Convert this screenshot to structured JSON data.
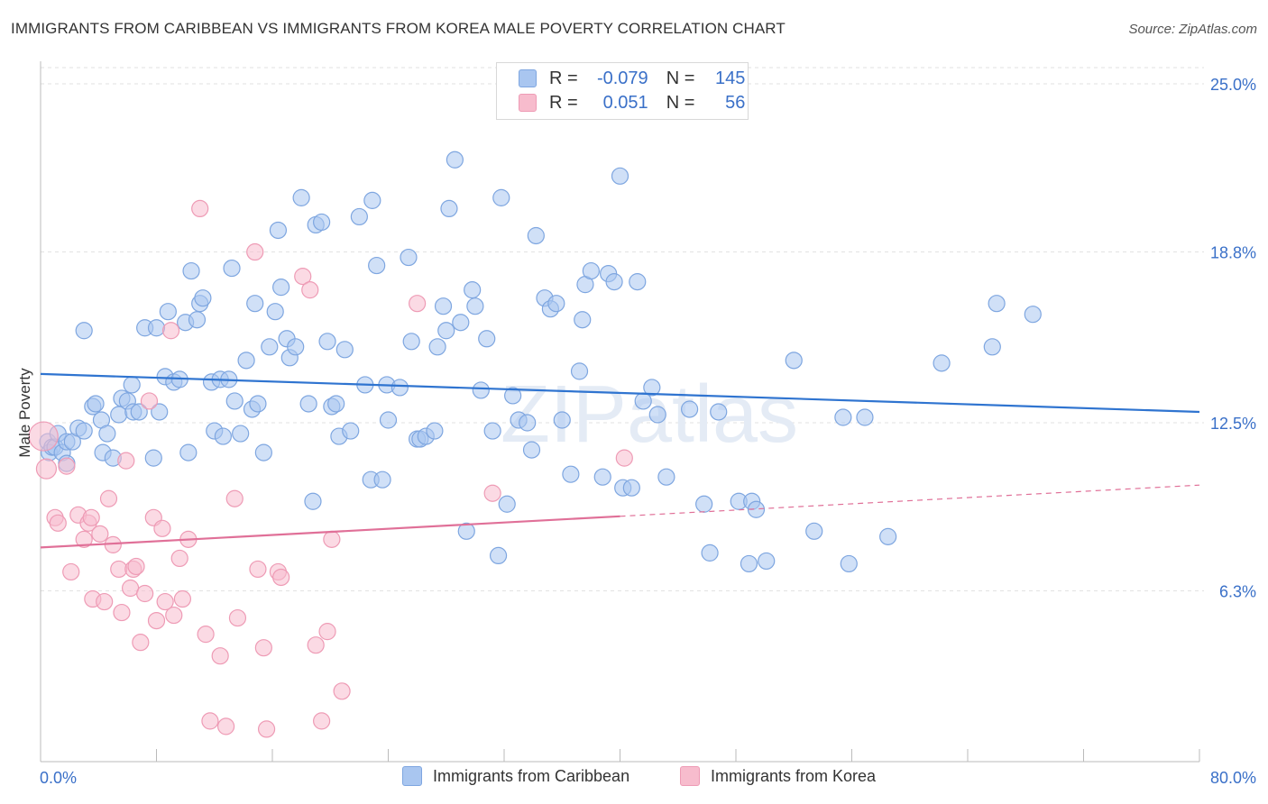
{
  "title": "IMMIGRANTS FROM CARIBBEAN VS IMMIGRANTS FROM KOREA MALE POVERTY CORRELATION CHART",
  "source": "Source: ZipAtlas.com",
  "watermark": "ZIPatlas",
  "legend_top": {
    "rows": [
      {
        "r_label": "R =",
        "r_value": "-0.079",
        "n_label": "N =",
        "n_value": "145"
      },
      {
        "r_label": "R =",
        "r_value": "0.051",
        "n_label": "N =",
        "n_value": "56"
      }
    ]
  },
  "legend_bottom": {
    "items": [
      {
        "label": "Immigrants from Caribbean"
      },
      {
        "label": "Immigrants from Korea"
      }
    ]
  },
  "colors": {
    "caribbean_fill": "#a9c6f0",
    "caribbean_stroke": "#7ea6e0",
    "caribbean_line": "#2f74d0",
    "korea_fill": "#f7bccd",
    "korea_stroke": "#ee9bb5",
    "korea_line": "#e07098",
    "tick_label": "#3a70c8",
    "grid": "#e2e2e2"
  },
  "chart_data": {
    "type": "scatter",
    "title": "IMMIGRANTS FROM CARIBBEAN VS IMMIGRANTS FROM KOREA MALE POVERTY CORRELATION CHART",
    "xlabel": "",
    "ylabel": "Male Poverty",
    "xlim": [
      0,
      80
    ],
    "ylim": [
      0,
      25.6
    ],
    "x_tick_labels": [
      "0.0%",
      "80.0%"
    ],
    "y_ticks": [
      6.3,
      12.5,
      18.8,
      25.0
    ],
    "y_tick_labels": [
      "6.3%",
      "12.5%",
      "18.8%",
      "25.0%"
    ],
    "grid": true,
    "legend_position": "top-center",
    "series": [
      {
        "name": "Immigrants from Caribbean",
        "R": -0.079,
        "N": 145,
        "trend": {
          "x": [
            0,
            80
          ],
          "y": [
            14.3,
            12.9
          ],
          "dashed_from": null
        },
        "points": [
          [
            0.5,
            11.8
          ],
          [
            0.6,
            11.4
          ],
          [
            0.8,
            11.6
          ],
          [
            1.0,
            11.6
          ],
          [
            1.2,
            12.1
          ],
          [
            1.5,
            11.4
          ],
          [
            1.8,
            11.0
          ],
          [
            1.8,
            11.8
          ],
          [
            2.2,
            11.8
          ],
          [
            2.6,
            12.3
          ],
          [
            3.0,
            15.9
          ],
          [
            3.0,
            12.2
          ],
          [
            3.6,
            13.1
          ],
          [
            3.8,
            13.2
          ],
          [
            4.2,
            12.6
          ],
          [
            4.3,
            11.4
          ],
          [
            4.6,
            12.1
          ],
          [
            5.0,
            11.2
          ],
          [
            5.4,
            12.8
          ],
          [
            5.6,
            13.4
          ],
          [
            6.0,
            13.3
          ],
          [
            6.3,
            13.9
          ],
          [
            6.4,
            12.9
          ],
          [
            6.8,
            12.9
          ],
          [
            7.2,
            16.0
          ],
          [
            7.8,
            11.2
          ],
          [
            8.0,
            16.0
          ],
          [
            8.2,
            12.9
          ],
          [
            8.6,
            14.2
          ],
          [
            8.8,
            16.6
          ],
          [
            9.2,
            14.0
          ],
          [
            9.6,
            14.1
          ],
          [
            10.0,
            16.2
          ],
          [
            10.2,
            11.4
          ],
          [
            10.4,
            18.1
          ],
          [
            10.8,
            16.3
          ],
          [
            11.0,
            16.9
          ],
          [
            11.2,
            17.1
          ],
          [
            11.8,
            14.0
          ],
          [
            12.0,
            12.2
          ],
          [
            12.4,
            14.1
          ],
          [
            12.6,
            12.0
          ],
          [
            13.0,
            14.1
          ],
          [
            13.2,
            18.2
          ],
          [
            13.4,
            13.3
          ],
          [
            13.8,
            12.1
          ],
          [
            14.2,
            14.8
          ],
          [
            14.6,
            13.0
          ],
          [
            14.8,
            16.9
          ],
          [
            15.0,
            13.2
          ],
          [
            15.4,
            11.4
          ],
          [
            15.8,
            15.3
          ],
          [
            16.2,
            16.6
          ],
          [
            16.4,
            19.6
          ],
          [
            16.6,
            17.5
          ],
          [
            17.0,
            15.6
          ],
          [
            17.2,
            14.9
          ],
          [
            17.6,
            15.3
          ],
          [
            18.0,
            20.8
          ],
          [
            18.5,
            13.2
          ],
          [
            18.8,
            9.6
          ],
          [
            19.0,
            19.8
          ],
          [
            19.4,
            19.9
          ],
          [
            19.8,
            15.5
          ],
          [
            20.1,
            13.1
          ],
          [
            20.4,
            13.2
          ],
          [
            20.6,
            12.0
          ],
          [
            21.0,
            15.2
          ],
          [
            21.4,
            12.2
          ],
          [
            22.0,
            20.1
          ],
          [
            22.4,
            13.9
          ],
          [
            22.8,
            10.4
          ],
          [
            22.9,
            20.7
          ],
          [
            23.2,
            18.3
          ],
          [
            23.6,
            10.4
          ],
          [
            23.9,
            13.9
          ],
          [
            24.0,
            12.6
          ],
          [
            24.8,
            13.8
          ],
          [
            25.4,
            18.6
          ],
          [
            25.6,
            15.5
          ],
          [
            26.0,
            11.9
          ],
          [
            26.2,
            11.9
          ],
          [
            26.6,
            12.0
          ],
          [
            27.2,
            12.2
          ],
          [
            27.4,
            15.3
          ],
          [
            27.8,
            16.8
          ],
          [
            28.0,
            15.9
          ],
          [
            28.2,
            20.4
          ],
          [
            28.6,
            22.2
          ],
          [
            29.0,
            16.2
          ],
          [
            29.4,
            8.5
          ],
          [
            29.8,
            17.4
          ],
          [
            30.0,
            16.8
          ],
          [
            30.4,
            13.7
          ],
          [
            30.8,
            15.6
          ],
          [
            31.2,
            12.2
          ],
          [
            31.6,
            7.6
          ],
          [
            31.8,
            20.8
          ],
          [
            32.2,
            9.5
          ],
          [
            32.6,
            13.5
          ],
          [
            33.0,
            12.6
          ],
          [
            33.6,
            12.5
          ],
          [
            33.9,
            11.5
          ],
          [
            34.2,
            19.4
          ],
          [
            34.8,
            17.1
          ],
          [
            35.2,
            16.7
          ],
          [
            35.6,
            16.9
          ],
          [
            36.0,
            12.6
          ],
          [
            36.6,
            10.6
          ],
          [
            37.2,
            14.4
          ],
          [
            37.4,
            16.3
          ],
          [
            37.6,
            17.6
          ],
          [
            38.0,
            18.1
          ],
          [
            38.8,
            10.5
          ],
          [
            39.2,
            18.0
          ],
          [
            39.6,
            17.7
          ],
          [
            40.0,
            21.6
          ],
          [
            40.2,
            10.1
          ],
          [
            40.8,
            10.1
          ],
          [
            41.2,
            17.7
          ],
          [
            41.6,
            13.3
          ],
          [
            42.2,
            13.8
          ],
          [
            42.6,
            12.8
          ],
          [
            43.2,
            10.5
          ],
          [
            44.8,
            13.0
          ],
          [
            45.8,
            9.5
          ],
          [
            46.2,
            7.7
          ],
          [
            46.8,
            12.9
          ],
          [
            48.2,
            9.6
          ],
          [
            48.9,
            7.3
          ],
          [
            49.1,
            9.6
          ],
          [
            49.4,
            9.3
          ],
          [
            50.1,
            7.4
          ],
          [
            52.0,
            14.8
          ],
          [
            53.4,
            8.5
          ],
          [
            55.4,
            12.7
          ],
          [
            55.8,
            7.3
          ],
          [
            56.9,
            12.7
          ],
          [
            58.5,
            8.3
          ],
          [
            62.2,
            14.7
          ],
          [
            65.7,
            15.3
          ],
          [
            66.0,
            16.9
          ],
          [
            68.5,
            16.5
          ]
        ]
      },
      {
        "name": "Immigrants from Korea",
        "R": 0.051,
        "N": 56,
        "trend": {
          "x": [
            0,
            80
          ],
          "y": [
            7.9,
            10.2
          ],
          "dashed_from": 40
        },
        "points": [
          [
            0.2,
            12.0
          ],
          [
            0.4,
            10.8
          ],
          [
            1.0,
            9.0
          ],
          [
            1.2,
            8.8
          ],
          [
            1.8,
            10.9
          ],
          [
            2.1,
            7.0
          ],
          [
            2.6,
            9.1
          ],
          [
            3.0,
            8.2
          ],
          [
            3.3,
            8.8
          ],
          [
            3.5,
            9.0
          ],
          [
            3.6,
            6.0
          ],
          [
            4.1,
            8.4
          ],
          [
            4.4,
            5.9
          ],
          [
            4.7,
            9.7
          ],
          [
            5.0,
            8.0
          ],
          [
            5.4,
            7.1
          ],
          [
            5.6,
            5.5
          ],
          [
            5.9,
            11.1
          ],
          [
            6.2,
            6.4
          ],
          [
            6.4,
            7.1
          ],
          [
            6.6,
            7.2
          ],
          [
            6.9,
            4.4
          ],
          [
            7.2,
            6.2
          ],
          [
            7.5,
            13.3
          ],
          [
            7.8,
            9.0
          ],
          [
            8.0,
            5.2
          ],
          [
            8.4,
            8.6
          ],
          [
            8.6,
            5.9
          ],
          [
            9.0,
            15.9
          ],
          [
            9.2,
            5.4
          ],
          [
            9.6,
            7.5
          ],
          [
            9.8,
            6.0
          ],
          [
            10.2,
            8.2
          ],
          [
            11.0,
            20.4
          ],
          [
            11.4,
            4.7
          ],
          [
            11.7,
            1.5
          ],
          [
            12.4,
            3.9
          ],
          [
            12.8,
            1.3
          ],
          [
            13.4,
            9.7
          ],
          [
            13.6,
            5.3
          ],
          [
            14.8,
            18.8
          ],
          [
            15.0,
            7.1
          ],
          [
            15.4,
            4.2
          ],
          [
            15.6,
            1.2
          ],
          [
            16.4,
            7.0
          ],
          [
            16.6,
            6.8
          ],
          [
            18.1,
            17.9
          ],
          [
            18.6,
            17.4
          ],
          [
            19.0,
            4.3
          ],
          [
            19.4,
            1.5
          ],
          [
            19.8,
            4.8
          ],
          [
            20.1,
            8.2
          ],
          [
            20.8,
            2.6
          ],
          [
            26.0,
            16.9
          ],
          [
            31.2,
            9.9
          ],
          [
            40.3,
            11.2
          ]
        ]
      }
    ]
  }
}
